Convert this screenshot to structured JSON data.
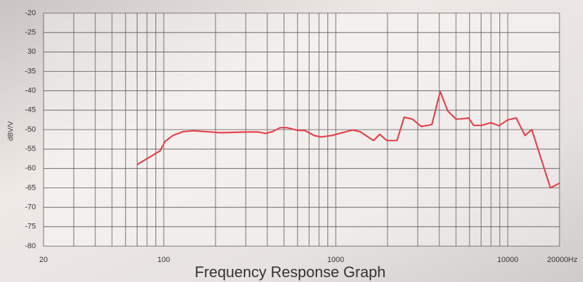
{
  "chart_data": {
    "type": "line",
    "title": "Frequency Response Graph",
    "y_label": "dBV/V",
    "x": [
      70,
      95,
      102,
      113,
      130,
      150,
      215,
      310,
      355,
      390,
      430,
      475,
      520,
      600,
      660,
      750,
      820,
      950,
      1250,
      1380,
      1660,
      1800,
      1980,
      2270,
      2500,
      2790,
      3150,
      3620,
      4050,
      4480,
      5010,
      5500,
      5930,
      6330,
      7070,
      7960,
      8900,
      10000,
      11200,
      12600,
      13800,
      17700,
      20000
    ],
    "values": [
      -59,
      -55.5,
      -53,
      -51.5,
      -50.5,
      -50.3,
      -50.8,
      -50.6,
      -50.6,
      -51,
      -50.5,
      -49.5,
      -49.5,
      -50.2,
      -50.2,
      -51.5,
      -51.9,
      -51.5,
      -50.1,
      -50.5,
      -52.8,
      -51.2,
      -52.8,
      -52.8,
      -46.8,
      -47.3,
      -49.2,
      -48.7,
      -40.2,
      -45.2,
      -47.3,
      -47.2,
      -47,
      -48.9,
      -48.9,
      -48.2,
      -49,
      -47.5,
      -47,
      -51.5,
      -50,
      -65,
      -63.8
    ],
    "color": "#e8404a",
    "xlim": [
      20,
      20000
    ],
    "xlog": true,
    "xticks": [
      20,
      100,
      1000,
      10000,
      {
        "value": 20000,
        "label": "20000Hz"
      }
    ],
    "xgrid": [
      20,
      30,
      40,
      50,
      60,
      70,
      80,
      90,
      100,
      200,
      300,
      400,
      500,
      600,
      700,
      800,
      900,
      1000,
      2000,
      3000,
      4000,
      5000,
      6000,
      7000,
      8000,
      9000,
      10000,
      20000
    ],
    "ylim": [
      -80,
      -20
    ],
    "yticks": [
      -20,
      -25,
      {
        "value": -30,
        "label": "30"
      },
      -35,
      -40,
      -45,
      -50,
      -55,
      -60,
      -65,
      -70,
      -75,
      -80
    ],
    "grid": true
  }
}
